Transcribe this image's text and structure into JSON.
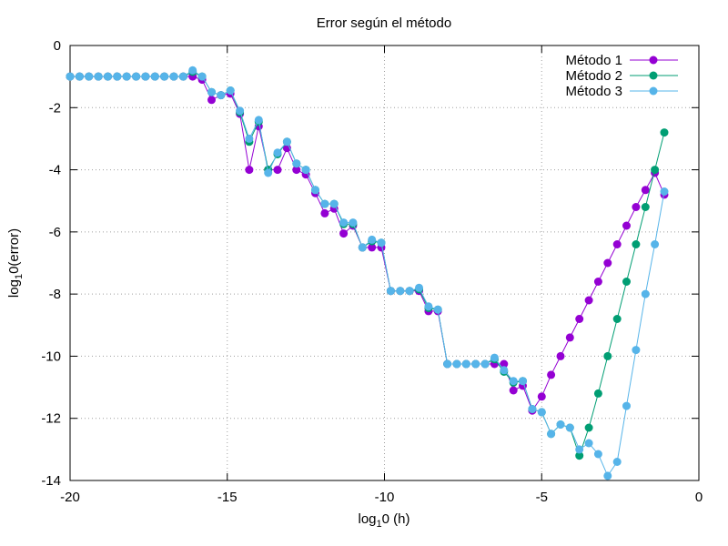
{
  "chart_data": {
    "type": "line",
    "title": "Error según el método",
    "xlabel": "log",
    "xlabel_sub": "1",
    "xlabel_rest": "0 (h)",
    "ylabel": "log",
    "ylabel_sub": "1",
    "ylabel_rest": "0(error)",
    "xlim": [
      -20,
      0
    ],
    "ylim": [
      -14,
      0
    ],
    "xticks": [
      -20,
      -15,
      -10,
      -5,
      0
    ],
    "yticks": [
      0,
      -2,
      -4,
      -6,
      -8,
      -10,
      -12,
      -14
    ],
    "grid": true,
    "legend_position": "top-right",
    "series": [
      {
        "name": "Método 1",
        "color": "#9400d3",
        "x": [
          -20,
          -19.7,
          -19.4,
          -19.1,
          -18.8,
          -18.5,
          -18.2,
          -17.9,
          -17.6,
          -17.3,
          -17.0,
          -16.7,
          -16.4,
          -16.1,
          -15.8,
          -15.5,
          -15.2,
          -14.9,
          -14.6,
          -14.3,
          -14.0,
          -13.7,
          -13.4,
          -13.1,
          -12.8,
          -12.5,
          -12.2,
          -11.9,
          -11.6,
          -11.3,
          -11.0,
          -10.7,
          -10.4,
          -10.1,
          -9.8,
          -9.5,
          -9.2,
          -8.9,
          -8.6,
          -8.3,
          -8.0,
          -7.7,
          -7.4,
          -7.1,
          -6.8,
          -6.5,
          -6.2,
          -5.9,
          -5.6,
          -5.3,
          -5.0,
          -4.7,
          -4.4,
          -4.1,
          -3.8,
          -3.5,
          -3.2,
          -2.9,
          -2.6,
          -2.3,
          -2.0,
          -1.7,
          -1.4,
          -1.1
        ],
        "values": [
          -1.0,
          -1.0,
          -1.0,
          -1.0,
          -1.0,
          -1.0,
          -1.0,
          -1.0,
          -1.0,
          -1.0,
          -1.0,
          -1.0,
          -1.0,
          -1.0,
          -1.1,
          -1.75,
          -1.6,
          -1.55,
          -2.2,
          -4.0,
          -2.6,
          -4.0,
          -4.0,
          -3.3,
          -4.0,
          -4.15,
          -4.75,
          -5.4,
          -5.25,
          -6.05,
          -5.8,
          -6.5,
          -6.5,
          -6.5,
          -7.9,
          -7.9,
          -7.9,
          -7.9,
          -8.55,
          -8.55,
          -10.25,
          -10.25,
          -10.25,
          -10.25,
          -10.25,
          -10.25,
          -10.25,
          -11.1,
          -10.95,
          -11.75,
          -11.3,
          -10.6,
          -10.0,
          -9.4,
          -8.8,
          -8.2,
          -7.6,
          -7.0,
          -6.4,
          -5.8,
          -5.2,
          -4.65,
          -4.1,
          -4.8
        ]
      },
      {
        "name": "Método 2",
        "color": "#009e73",
        "x": [
          -20,
          -19.7,
          -19.4,
          -19.1,
          -18.8,
          -18.5,
          -18.2,
          -17.9,
          -17.6,
          -17.3,
          -17.0,
          -16.7,
          -16.4,
          -16.1,
          -15.8,
          -15.5,
          -15.2,
          -14.9,
          -14.6,
          -14.3,
          -14.0,
          -13.7,
          -13.4,
          -13.1,
          -12.8,
          -12.5,
          -12.2,
          -11.9,
          -11.6,
          -11.3,
          -11.0,
          -10.7,
          -10.4,
          -10.1,
          -9.8,
          -9.5,
          -9.2,
          -8.9,
          -8.6,
          -8.3,
          -8.0,
          -7.7,
          -7.4,
          -7.1,
          -6.8,
          -6.5,
          -6.2,
          -5.9,
          -5.6,
          -5.3,
          -5.0,
          -4.7,
          -4.4,
          -4.1,
          -3.8,
          -3.5,
          -3.2,
          -2.9,
          -2.6,
          -2.3,
          -2.0,
          -1.7,
          -1.4,
          -1.1
        ],
        "values": [
          -1.0,
          -1.0,
          -1.0,
          -1.0,
          -1.0,
          -1.0,
          -1.0,
          -1.0,
          -1.0,
          -1.0,
          -1.0,
          -1.0,
          -1.0,
          -0.85,
          -1.0,
          -1.5,
          -1.6,
          -1.45,
          -2.15,
          -3.1,
          -2.45,
          -4.0,
          -3.5,
          -3.1,
          -3.8,
          -4.0,
          -4.65,
          -5.1,
          -5.1,
          -5.75,
          -5.75,
          -6.5,
          -6.3,
          -6.35,
          -7.9,
          -7.9,
          -7.9,
          -7.85,
          -8.45,
          -8.5,
          -10.25,
          -10.25,
          -10.25,
          -10.25,
          -10.25,
          -10.1,
          -10.5,
          -10.85,
          -10.8,
          -11.7,
          -11.8,
          -12.5,
          -12.2,
          -12.3,
          -13.2,
          -12.3,
          -11.2,
          -10.0,
          -8.8,
          -7.6,
          -6.4,
          -5.2,
          -4.0,
          -2.8
        ]
      },
      {
        "name": "Método 3",
        "color": "#56b4e9",
        "x": [
          -20,
          -19.7,
          -19.4,
          -19.1,
          -18.8,
          -18.5,
          -18.2,
          -17.9,
          -17.6,
          -17.3,
          -17.0,
          -16.7,
          -16.4,
          -16.1,
          -15.8,
          -15.5,
          -15.2,
          -14.9,
          -14.6,
          -14.3,
          -14.0,
          -13.7,
          -13.4,
          -13.1,
          -12.8,
          -12.5,
          -12.2,
          -11.9,
          -11.6,
          -11.3,
          -11.0,
          -10.7,
          -10.4,
          -10.1,
          -9.8,
          -9.5,
          -9.2,
          -8.9,
          -8.6,
          -8.3,
          -8.0,
          -7.7,
          -7.4,
          -7.1,
          -6.8,
          -6.5,
          -6.2,
          -5.9,
          -5.6,
          -5.3,
          -5.0,
          -4.7,
          -4.4,
          -4.1,
          -3.8,
          -3.5,
          -3.2,
          -2.9,
          -2.6,
          -2.3,
          -2.0,
          -1.7,
          -1.4,
          -1.1
        ],
        "values": [
          -1.0,
          -1.0,
          -1.0,
          -1.0,
          -1.0,
          -1.0,
          -1.0,
          -1.0,
          -1.0,
          -1.0,
          -1.0,
          -1.0,
          -1.0,
          -0.8,
          -1.0,
          -1.5,
          -1.6,
          -1.45,
          -2.1,
          -3.0,
          -2.4,
          -4.1,
          -3.45,
          -3.1,
          -3.8,
          -4.0,
          -4.65,
          -5.1,
          -5.1,
          -5.7,
          -5.7,
          -6.5,
          -6.25,
          -6.35,
          -7.9,
          -7.9,
          -7.9,
          -7.8,
          -8.4,
          -8.5,
          -10.25,
          -10.25,
          -10.25,
          -10.25,
          -10.25,
          -10.05,
          -10.45,
          -10.8,
          -10.8,
          -11.7,
          -11.8,
          -12.5,
          -12.2,
          -12.3,
          -13.0,
          -12.8,
          -13.15,
          -13.85,
          -13.4,
          -11.6,
          -9.8,
          -8.0,
          -6.4,
          -4.7
        ]
      }
    ]
  }
}
